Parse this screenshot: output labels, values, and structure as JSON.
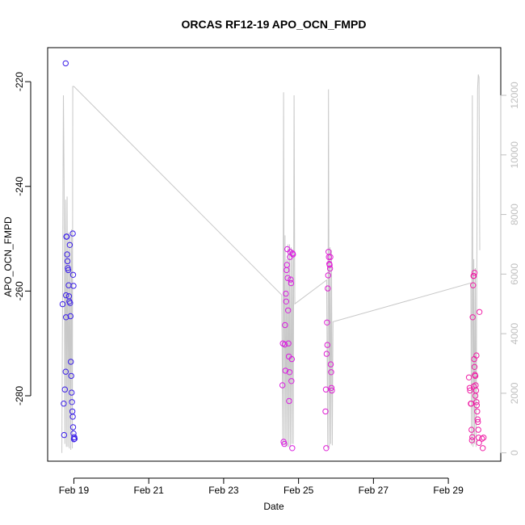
{
  "chart_data": {
    "type": "scatter",
    "title": "ORCAS RF12-19 APO_OCN_FMPD",
    "xlabel": "Date",
    "ylabel": "APO_OCN_FMPD",
    "x_ticks": [
      "Feb 19",
      "Feb 21",
      "Feb 23",
      "Feb 25",
      "Feb 27",
      "Feb 29"
    ],
    "y_ticks": [
      -220,
      -240,
      -260,
      -280
    ],
    "y2_ticks": [
      0,
      2000,
      4000,
      6000,
      8000,
      10000,
      12000
    ],
    "colors": {
      "early": "#3b1fe8",
      "late": "#f01ea6",
      "altitude": "#c8c8c8"
    },
    "series": [
      {
        "flight_day": 18.9,
        "points": [
          [
            18.78,
            -216.5
          ],
          [
            18.7,
            -262.5
          ],
          [
            18.73,
            -281.5
          ],
          [
            18.74,
            -287.5
          ],
          [
            18.76,
            -278.8
          ],
          [
            18.78,
            -275.4
          ],
          [
            18.79,
            -265.0
          ],
          [
            18.8,
            -249.6
          ],
          [
            18.81,
            -249.6
          ],
          [
            18.82,
            -253.0
          ],
          [
            18.83,
            -254.3
          ],
          [
            18.84,
            -255.6
          ],
          [
            18.85,
            -256.0
          ],
          [
            18.86,
            -258.9
          ],
          [
            18.87,
            -261.0
          ],
          [
            18.88,
            -262.0
          ],
          [
            18.89,
            -251.2
          ],
          [
            18.9,
            -262.3
          ],
          [
            18.91,
            -264.8
          ],
          [
            18.92,
            -273.5
          ],
          [
            18.93,
            -276.2
          ],
          [
            18.94,
            -279.4
          ],
          [
            18.95,
            -281.2
          ],
          [
            18.96,
            -283.0
          ],
          [
            18.97,
            -284.0
          ],
          [
            18.98,
            -286.0
          ],
          [
            18.99,
            -287.2
          ],
          [
            19.0,
            -288.3
          ],
          [
            19.01,
            -287.9
          ],
          [
            19.02,
            -288.2
          ],
          [
            18.97,
            -249.0
          ],
          [
            18.98,
            -256.9
          ],
          [
            18.99,
            -259.0
          ],
          [
            18.79,
            -260.8
          ]
        ]
      },
      {
        "flight_day": 24.8,
        "points": [
          [
            24.57,
            -278.0
          ],
          [
            24.58,
            -270.0
          ],
          [
            24.6,
            -288.8
          ],
          [
            24.62,
            -289.2
          ],
          [
            24.63,
            -270.2
          ],
          [
            24.64,
            -266.5
          ],
          [
            24.65,
            -275.2
          ],
          [
            24.66,
            -260.5
          ],
          [
            24.67,
            -262.0
          ],
          [
            24.68,
            -256.0
          ],
          [
            24.69,
            -255.0
          ],
          [
            24.7,
            -252.0
          ],
          [
            24.71,
            -257.5
          ],
          [
            24.72,
            -263.7
          ],
          [
            24.73,
            -270.0
          ],
          [
            24.74,
            -272.5
          ],
          [
            24.75,
            -281.0
          ],
          [
            24.76,
            -275.5
          ],
          [
            24.77,
            -253.5
          ],
          [
            24.78,
            -252.5
          ],
          [
            24.79,
            -257.8
          ],
          [
            24.8,
            -258.5
          ],
          [
            24.81,
            -277.2
          ],
          [
            24.82,
            -273.0
          ],
          [
            24.83,
            -290.0
          ],
          [
            24.84,
            -252.8
          ],
          [
            24.85,
            -253.0
          ]
        ]
      },
      {
        "flight_day": 25.8,
        "points": [
          [
            25.72,
            -283.0
          ],
          [
            25.73,
            -278.8
          ],
          [
            25.74,
            -290.0
          ],
          [
            25.75,
            -272.0
          ],
          [
            25.76,
            -266.0
          ],
          [
            25.77,
            -270.3
          ],
          [
            25.78,
            -259.5
          ],
          [
            25.79,
            -257.0
          ],
          [
            25.8,
            -252.5
          ],
          [
            25.81,
            -253.5
          ],
          [
            25.82,
            -254.8
          ],
          [
            25.83,
            -255.0
          ],
          [
            25.84,
            -255.7
          ],
          [
            25.85,
            -253.5
          ],
          [
            25.86,
            -274.0
          ],
          [
            25.87,
            -275.5
          ],
          [
            25.88,
            -278.5
          ],
          [
            25.89,
            -279.0
          ]
        ]
      },
      {
        "flight_day": 29.7,
        "points": [
          [
            29.55,
            -276.5
          ],
          [
            29.57,
            -278.5
          ],
          [
            29.58,
            -279.0
          ],
          [
            29.6,
            -281.5
          ],
          [
            29.61,
            -281.5
          ],
          [
            29.62,
            -286.5
          ],
          [
            29.63,
            -288.5
          ],
          [
            29.64,
            -287.9
          ],
          [
            29.65,
            -265.0
          ],
          [
            29.66,
            -258.9
          ],
          [
            29.67,
            -257.1
          ],
          [
            29.68,
            -257.1
          ],
          [
            29.69,
            -273.0
          ],
          [
            29.7,
            -274.5
          ],
          [
            29.71,
            -276.0
          ],
          [
            29.72,
            -276.2
          ],
          [
            29.73,
            -278.0
          ],
          [
            29.74,
            -279.0
          ],
          [
            29.75,
            -281.2
          ],
          [
            29.76,
            -281.8
          ],
          [
            29.77,
            -283.0
          ],
          [
            29.78,
            -284.5
          ],
          [
            29.79,
            -285.0
          ],
          [
            29.8,
            -286.5
          ],
          [
            29.81,
            -288.0
          ],
          [
            29.82,
            -289.0
          ],
          [
            29.83,
            -264.0
          ],
          [
            29.9,
            -288.2
          ],
          [
            29.92,
            -290.0
          ],
          [
            29.94,
            -288.0
          ],
          [
            29.68,
            -278.2
          ],
          [
            29.72,
            -280.0
          ],
          [
            29.75,
            -272.3
          ],
          [
            29.7,
            -256.5
          ]
        ]
      }
    ],
    "altitude_trace": [
      [
        18.68,
        0
      ],
      [
        18.72,
        12000
      ],
      [
        18.74,
        9000
      ],
      [
        18.76,
        300
      ],
      [
        18.78,
        8500
      ],
      [
        18.8,
        200
      ],
      [
        18.82,
        8600
      ],
      [
        18.84,
        200
      ],
      [
        18.86,
        7400
      ],
      [
        18.88,
        150
      ],
      [
        18.9,
        7300
      ],
      [
        18.92,
        100
      ],
      [
        18.94,
        7500
      ],
      [
        18.96,
        150
      ],
      [
        18.97,
        12300
      ],
      [
        19.0,
        12300
      ],
      [
        24.55,
        5300
      ],
      [
        24.58,
        300
      ],
      [
        24.6,
        12100
      ],
      [
        24.62,
        300
      ],
      [
        24.64,
        7300
      ],
      [
        24.66,
        200
      ],
      [
        24.68,
        6500
      ],
      [
        24.7,
        200
      ],
      [
        24.72,
        7000
      ],
      [
        24.74,
        200
      ],
      [
        24.76,
        7000
      ],
      [
        24.78,
        200
      ],
      [
        24.8,
        6900
      ],
      [
        24.82,
        300
      ],
      [
        24.84,
        6800
      ],
      [
        24.86,
        300
      ],
      [
        24.88,
        12000
      ],
      [
        24.9,
        5000
      ],
      [
        25.75,
        5800
      ],
      [
        25.78,
        150
      ],
      [
        25.8,
        12200
      ],
      [
        25.82,
        200
      ],
      [
        25.84,
        6900
      ],
      [
        25.86,
        300
      ],
      [
        25.88,
        6800
      ],
      [
        25.9,
        250
      ],
      [
        25.92,
        4400
      ],
      [
        29.6,
        5700
      ],
      [
        29.62,
        250
      ],
      [
        29.64,
        12000
      ],
      [
        29.66,
        200
      ],
      [
        29.68,
        6500
      ],
      [
        29.7,
        300
      ],
      [
        29.72,
        6200
      ],
      [
        29.74,
        200
      ],
      [
        29.76,
        6000
      ],
      [
        29.78,
        12200
      ],
      [
        29.8,
        12700
      ],
      [
        29.82,
        12600
      ],
      [
        29.84,
        6800
      ]
    ]
  }
}
